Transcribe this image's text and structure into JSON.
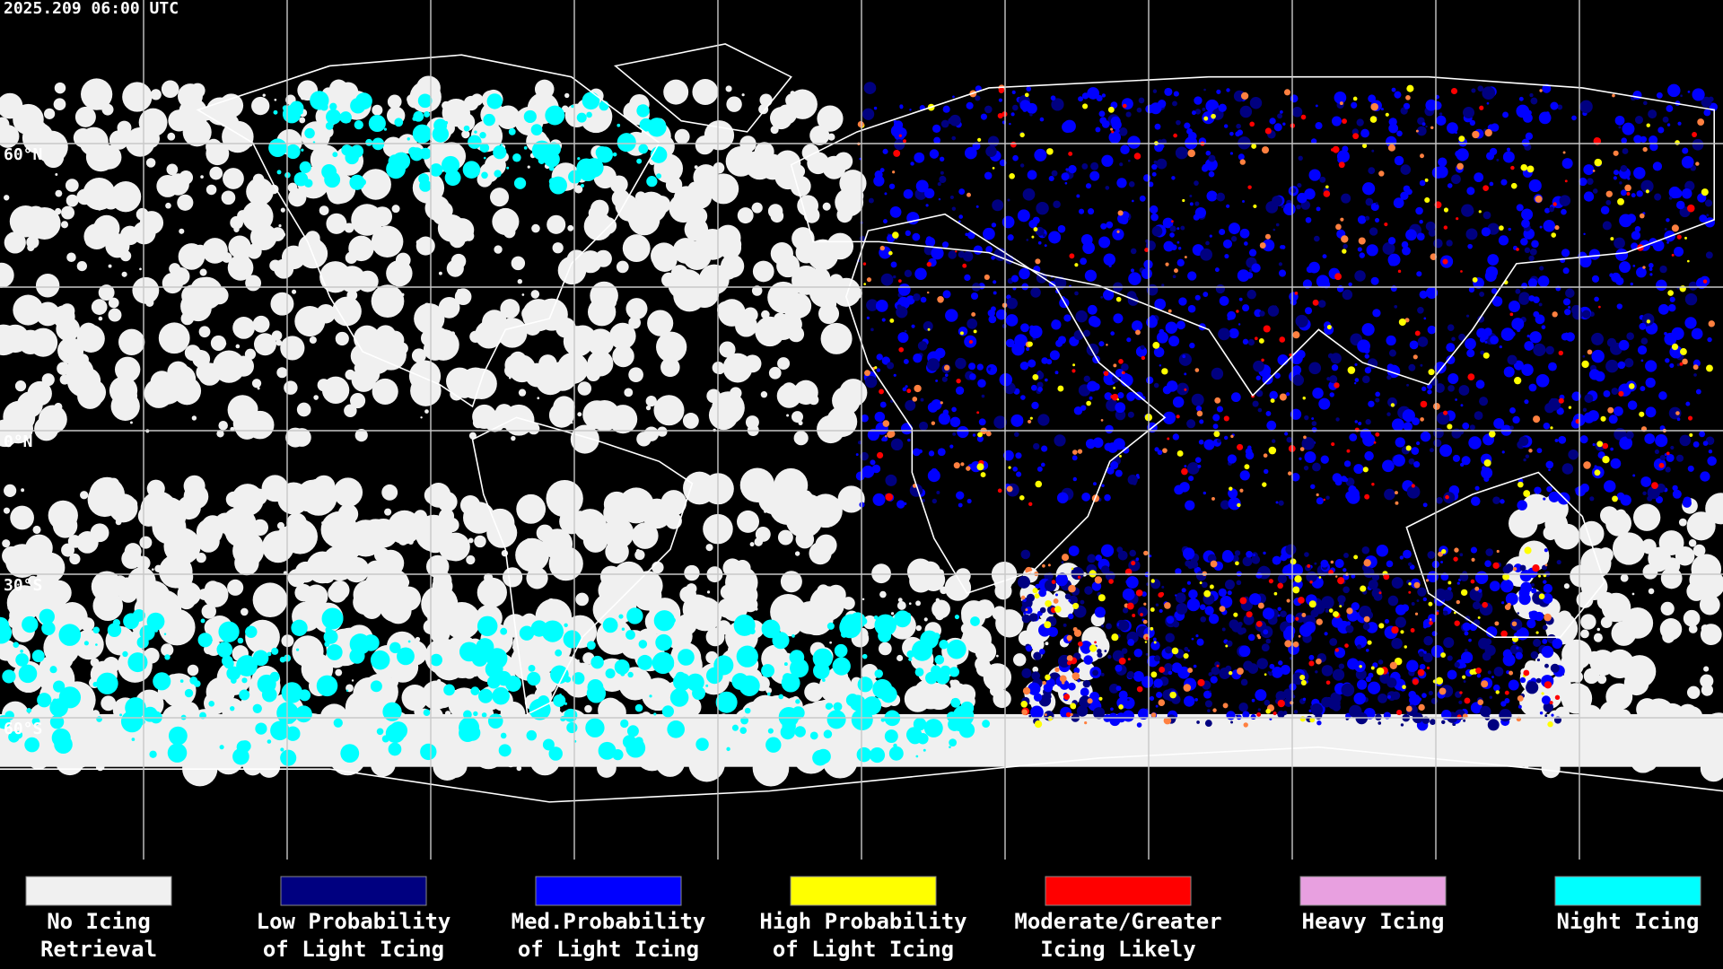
{
  "timestamp": "2025.209 06:00 UTC",
  "latitude_labels": [
    "60°N",
    "0°N",
    "30°S",
    "60°S"
  ],
  "legend": [
    {
      "lines": [
        "No Icing",
        "Retrieval"
      ],
      "color": "#f0f0f0"
    },
    {
      "lines": [
        "Low Probability",
        "of Light Icing"
      ],
      "color": "#000080"
    },
    {
      "lines": [
        "Med.Probability",
        "of Light Icing"
      ],
      "color": "#0000ff"
    },
    {
      "lines": [
        "High Probability",
        "of Light Icing"
      ],
      "color": "#ffff00"
    },
    {
      "lines": [
        "Moderate/Greater",
        "Icing Likely"
      ],
      "color": "#ff0000"
    },
    {
      "lines": [
        "Heavy Icing"
      ],
      "color": "#e8a0e0"
    },
    {
      "lines": [
        "Night Icing"
      ],
      "color": "#00ffff"
    }
  ]
}
